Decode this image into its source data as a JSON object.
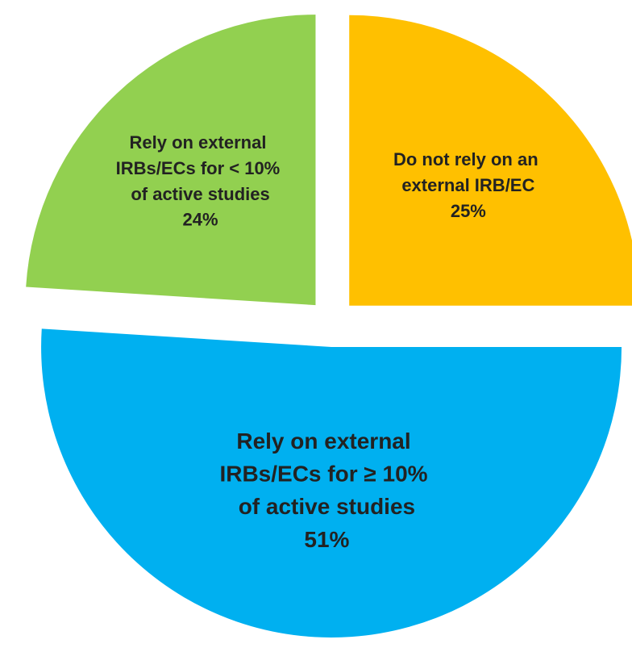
{
  "chart_data": {
    "type": "pie",
    "categories": [
      "Do not rely on an external IRB/EC",
      "Rely on external IRBs/ECs for ≥ 10% of active studies",
      "Rely on external IRBs/ECs for < 10% of active studies"
    ],
    "values": [
      25,
      51,
      24
    ],
    "value_labels": [
      "25%",
      "51%",
      "24%"
    ],
    "colors": [
      "#FFC000",
      "#00B0F0",
      "#92D050"
    ],
    "start_angle": 0,
    "direction": "clockwise",
    "exploded": true
  }
}
